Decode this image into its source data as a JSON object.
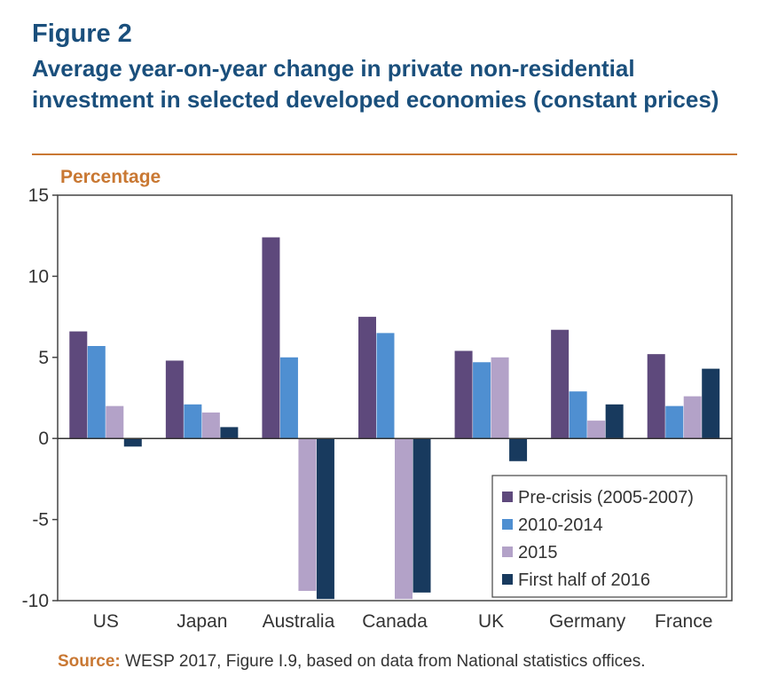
{
  "figure": {
    "label": "Figure 2",
    "title": "Average year-on-year change in private non-residential investment in selected developed economies (constant prices)",
    "source_label": "Source:",
    "source_text": " WESP 2017, Figure I.9, based on data from National statistics offices."
  },
  "colors": {
    "title": "#1a4f7c",
    "accent": "#c97833",
    "series": [
      "#5e497c",
      "#4f8fd1",
      "#b3a2c8",
      "#183a5e"
    ]
  },
  "chart_data": {
    "type": "bar",
    "title": "",
    "ylabel": "Percentage",
    "xlabel": "",
    "ylim": [
      -10,
      15
    ],
    "yticks": [
      15,
      10,
      5,
      0,
      -5,
      -10
    ],
    "ytick_labels": [
      "15",
      "10",
      "5",
      "0",
      "-5",
      "-10"
    ],
    "grid": false,
    "legend_position": "bottom-right",
    "categories": [
      "US",
      "Japan",
      "Australia",
      "Canada",
      "UK",
      "Germany",
      "France"
    ],
    "series": [
      {
        "name": "Pre-crisis (2005-2007)",
        "values": [
          6.6,
          4.8,
          12.4,
          7.5,
          5.4,
          6.7,
          5.2
        ]
      },
      {
        "name": "2010-2014",
        "values": [
          5.7,
          2.1,
          5.0,
          6.5,
          4.7,
          2.9,
          2.0
        ]
      },
      {
        "name": "2015",
        "values": [
          2.0,
          1.6,
          -9.4,
          -9.9,
          5.0,
          1.1,
          2.6
        ]
      },
      {
        "name": "First half of 2016",
        "values": [
          -0.5,
          0.7,
          -9.9,
          -9.5,
          -1.4,
          2.1,
          4.3
        ]
      }
    ]
  }
}
